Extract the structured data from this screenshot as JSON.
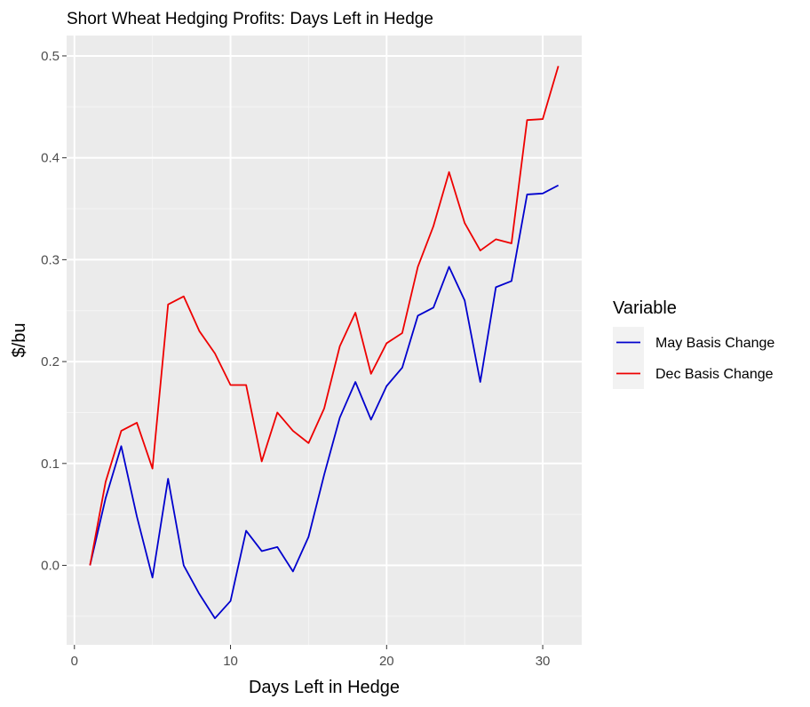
{
  "chart_data": {
    "type": "line",
    "title": "Short Wheat Hedging Profits: Days Left in Hedge",
    "xlabel": "Days Left in Hedge",
    "ylabel": "$/bu",
    "xlim": [
      -0.5,
      32.5
    ],
    "ylim": [
      -0.078,
      0.52
    ],
    "x_ticks": [
      0,
      10,
      20,
      30
    ],
    "y_ticks": [
      0.0,
      0.1,
      0.2,
      0.3,
      0.4,
      0.5
    ],
    "y_tick_labels": [
      "0.0",
      "0.1",
      "0.2",
      "0.3",
      "0.4",
      "0.5"
    ],
    "grid": true,
    "legend": {
      "title": "Variable",
      "position": "right"
    },
    "x": [
      1,
      2,
      3,
      4,
      5,
      6,
      7,
      8,
      9,
      10,
      11,
      12,
      13,
      14,
      15,
      16,
      17,
      18,
      19,
      20,
      21,
      22,
      23,
      24,
      25,
      26,
      27,
      28,
      29,
      30,
      31
    ],
    "series": [
      {
        "name": "May Basis Change",
        "color": "#0000cd",
        "values": [
          0.0,
          0.066,
          0.117,
          0.048,
          -0.012,
          0.085,
          0.0,
          -0.028,
          -0.052,
          -0.035,
          0.034,
          0.014,
          0.018,
          -0.006,
          0.028,
          0.089,
          0.145,
          0.18,
          0.143,
          0.176,
          0.194,
          0.245,
          0.253,
          0.293,
          0.26,
          0.18,
          0.273,
          0.279,
          0.364,
          0.365,
          0.373
        ]
      },
      {
        "name": "Dec Basis Change",
        "color": "#ee0000",
        "values": [
          0.0,
          0.082,
          0.132,
          0.14,
          0.095,
          0.256,
          0.264,
          0.23,
          0.208,
          0.177,
          0.177,
          0.102,
          0.15,
          0.132,
          0.12,
          0.154,
          0.215,
          0.248,
          0.188,
          0.218,
          0.228,
          0.293,
          0.333,
          0.386,
          0.336,
          0.309,
          0.32,
          0.316,
          0.437,
          0.438,
          0.49
        ]
      }
    ]
  }
}
